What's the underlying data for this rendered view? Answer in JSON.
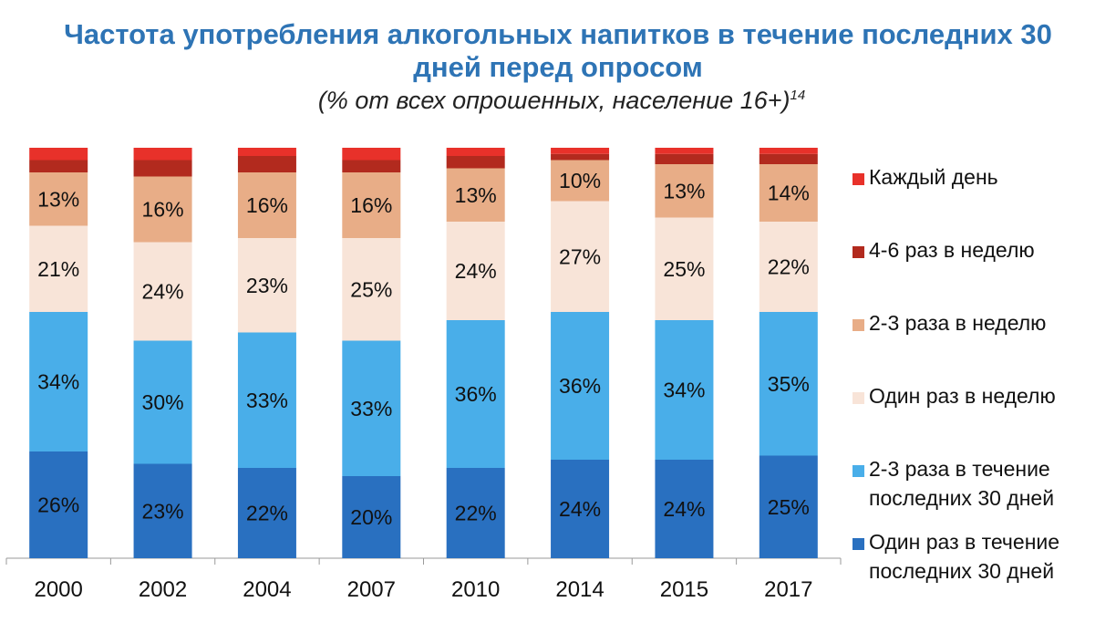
{
  "title": "Частота употребления алкогольных напитков в течение последних 30 дней перед опросом",
  "subtitle": "(% от всех опрошенных, население 16+)",
  "subtitle_footnote": "14",
  "chart_data": {
    "type": "bar",
    "stacked": true,
    "categories": [
      "2000",
      "2002",
      "2004",
      "2007",
      "2010",
      "2014",
      "2015",
      "2017"
    ],
    "ylim": [
      0,
      100
    ],
    "grid": false,
    "legend_position": "right",
    "series": [
      {
        "name": "Один раз в течение последних 30 дней",
        "color": "#2970c0",
        "values": [
          26,
          23,
          22,
          20,
          22,
          24,
          24,
          25
        ],
        "labels": [
          "26%",
          "23%",
          "22%",
          "20%",
          "22%",
          "24%",
          "24%",
          "25%"
        ]
      },
      {
        "name": "2-3 раза в течение последних 30 дней",
        "color": "#49aee9",
        "values": [
          34,
          30,
          33,
          33,
          36,
          36,
          34,
          35
        ],
        "labels": [
          "34%",
          "30%",
          "33%",
          "33%",
          "36%",
          "36%",
          "34%",
          "35%"
        ]
      },
      {
        "name": "Один раз в неделю",
        "color": "#f8e4d8",
        "values": [
          21,
          24,
          23,
          25,
          24,
          27,
          25,
          22
        ],
        "labels": [
          "21%",
          "24%",
          "23%",
          "25%",
          "24%",
          "27%",
          "25%",
          "22%"
        ]
      },
      {
        "name": "2-3 раза в неделю",
        "color": "#e8ad87",
        "values": [
          13,
          16,
          16,
          16,
          13,
          10,
          13,
          14
        ],
        "labels": [
          "13%",
          "16%",
          "16%",
          "16%",
          "13%",
          "10%",
          "13%",
          "14%"
        ]
      },
      {
        "name": "4-6 раз в неделю",
        "color": "#b22a1e",
        "values": [
          3,
          4,
          4,
          3,
          3,
          1.5,
          2.5,
          2.5
        ],
        "labels": []
      },
      {
        "name": "Каждый день",
        "color": "#e8312a",
        "values": [
          3,
          3,
          2,
          3,
          2,
          1.5,
          1.5,
          1.5
        ],
        "labels": []
      }
    ],
    "legend_order": [
      5,
      4,
      3,
      2,
      1,
      0
    ]
  }
}
